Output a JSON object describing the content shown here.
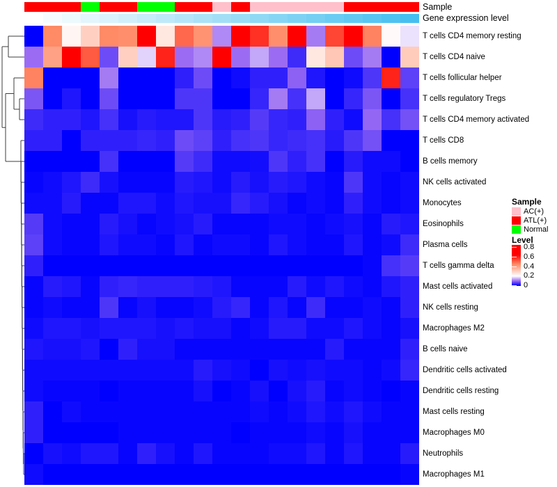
{
  "annotations": {
    "sample_label": "Sample",
    "expression_label": "Gene expression level"
  },
  "legend": {
    "sample": {
      "title": "Sample",
      "items": [
        {
          "label": "AC(+)",
          "color": "#FFC0CB"
        },
        {
          "label": "ATL(+)",
          "color": "#FF0000"
        },
        {
          "label": "Normal",
          "color": "#00FF00"
        }
      ]
    },
    "level": {
      "title": "Level",
      "ticks": [
        0.8,
        0.6,
        0.4,
        0.2,
        0
      ],
      "max": 0.85,
      "colormap": [
        {
          "v": 0.0,
          "color": "#0000FF"
        },
        {
          "v": 0.1,
          "color": "#9B6CF3"
        },
        {
          "v": 0.2,
          "color": "#FFFFFF"
        },
        {
          "v": 0.45,
          "color": "#FF8A66"
        },
        {
          "v": 0.65,
          "color": "#FF0000"
        },
        {
          "v": 0.85,
          "color": "#FF0000"
        }
      ]
    }
  },
  "expression_ramp": {
    "low": "#FFFFFF",
    "high": "#45BFEF"
  },
  "chart_data": {
    "type": "heatmap",
    "rows": [
      "T cells CD4 memory resting",
      "T cells CD4 naive",
      "T cells follicular helper",
      "T cells regulatory  Tregs",
      "T cells CD4 memory activated",
      "T cells CD8",
      "B cells memory",
      "NK cells activated",
      "Monocytes",
      "Eosinophils",
      "Plasma cells",
      "T cells gamma delta",
      "Mast cells activated",
      "NK cells resting",
      "Macrophages M2",
      "B cells naive",
      "Dendritic cells activated",
      "Dendritic cells resting",
      "Mast cells resting",
      "Macrophages M0",
      "Neutrophils",
      "Macrophages M1"
    ],
    "columns_sample_group": [
      "ATL(+)",
      "ATL(+)",
      "ATL(+)",
      "Normal",
      "ATL(+)",
      "ATL(+)",
      "Normal",
      "Normal",
      "ATL(+)",
      "ATL(+)",
      "AC(+)",
      "ATL(+)",
      "AC(+)",
      "AC(+)",
      "AC(+)",
      "AC(+)",
      "AC(+)",
      "ATL(+)",
      "ATL(+)",
      "ATL(+)",
      "ATL(+)"
    ],
    "columns_expression_level": [
      0,
      0.05,
      0.1,
      0.15,
      0.2,
      0.25,
      0.3,
      0.35,
      0.4,
      0.45,
      0.5,
      0.55,
      0.6,
      0.65,
      0.7,
      0.75,
      0.8,
      0.85,
      0.9,
      0.95,
      1
    ],
    "value_range": [
      0,
      0.85
    ],
    "legend_position": "right",
    "values": [
      [
        0,
        0.45,
        0.22,
        0.3,
        0.45,
        0.44,
        0.7,
        0.25,
        0.5,
        0.43,
        0.12,
        0.7,
        0.58,
        0.44,
        0.7,
        0.11,
        0.55,
        0.68,
        0.46,
        0.21,
        0.18
      ],
      [
        0.1,
        0.4,
        0.65,
        0.52,
        0.07,
        0.3,
        0.17,
        0.6,
        0.1,
        0.12,
        0.65,
        0.1,
        0.14,
        0.1,
        0.04,
        0.25,
        0.32,
        0.07,
        0.11,
        0,
        0.31
      ],
      [
        0.46,
        0,
        0,
        0,
        0.11,
        0,
        0,
        0,
        0.03,
        0.07,
        0,
        0.01,
        0.03,
        0.03,
        0.09,
        0.02,
        0,
        0.01,
        0.05,
        0.6,
        0.06
      ],
      [
        0.08,
        0,
        0.02,
        0,
        0.07,
        0,
        0,
        0,
        0.05,
        0.05,
        0,
        0,
        0.035,
        0.11,
        0.045,
        0.14,
        0,
        0.035,
        0.08,
        0,
        0.045
      ],
      [
        0.04,
        0.03,
        0.03,
        0.02,
        0.045,
        0.015,
        0.025,
        0.02,
        0.02,
        0.05,
        0.025,
        0.03,
        0.055,
        0.035,
        0.03,
        0.09,
        0.03,
        0.01,
        0.095,
        0.045,
        0.075
      ],
      [
        0.03,
        0.03,
        0,
        0.03,
        0.03,
        0.03,
        0.035,
        0.03,
        0.07,
        0.06,
        0.03,
        0.045,
        0.05,
        0.035,
        0.04,
        0.045,
        0.025,
        0.05,
        0.075,
        0,
        0
      ],
      [
        0,
        0,
        0,
        0,
        0.045,
        0,
        0,
        0,
        0.055,
        0.04,
        0.01,
        0.01,
        0.012,
        0.05,
        0.03,
        0.045,
        0,
        0.025,
        0.01,
        0.01,
        0
      ],
      [
        0.005,
        0.01,
        0.02,
        0.04,
        0.015,
        0.005,
        0.005,
        0.005,
        0.025,
        0.02,
        0.01,
        0.025,
        0.015,
        0.025,
        0.02,
        0.01,
        0.005,
        0.05,
        0.01,
        0.005,
        0.01
      ],
      [
        0.01,
        0.01,
        0.025,
        0.005,
        0.005,
        0.02,
        0.02,
        0.01,
        0.02,
        0.015,
        0.015,
        0.035,
        0.025,
        0.015,
        0.005,
        0.01,
        0.005,
        0.03,
        0.01,
        0.005,
        0.01
      ],
      [
        0.055,
        0.01,
        0.005,
        0.005,
        0.025,
        0.015,
        0.005,
        0.01,
        0.015,
        0.025,
        0.005,
        0.005,
        0.005,
        0.01,
        0.01,
        0.005,
        0.01,
        0.015,
        0.005,
        0.025,
        0.02
      ],
      [
        0.06,
        0.01,
        0.005,
        0.005,
        0.02,
        0.01,
        0.01,
        0.005,
        0.02,
        0.005,
        0.01,
        0.01,
        0.005,
        0.02,
        0.01,
        0.005,
        0.005,
        0.02,
        0.005,
        0.01,
        0.04
      ],
      [
        0.03,
        0,
        0,
        0,
        0,
        0,
        0,
        0,
        0,
        0,
        0,
        0,
        0,
        0,
        0,
        0,
        0,
        0,
        0.005,
        0.045,
        0.055
      ],
      [
        0.005,
        0.025,
        0.02,
        0.005,
        0.03,
        0.035,
        0.03,
        0.03,
        0.03,
        0.025,
        0.02,
        0.005,
        0.005,
        0.005,
        0.025,
        0.01,
        0.02,
        0.01,
        0.005,
        0.02,
        0.03
      ],
      [
        0.005,
        0.01,
        0.005,
        0.005,
        0.05,
        0.005,
        0.015,
        0.005,
        0.005,
        0.01,
        0.025,
        0.035,
        0.005,
        0.02,
        0.005,
        0.04,
        0.005,
        0.005,
        0.01,
        0.005,
        0.03
      ],
      [
        0.01,
        0.02,
        0.02,
        0.015,
        0.02,
        0.02,
        0.02,
        0.015,
        0.02,
        0.015,
        0.015,
        0.005,
        0.01,
        0.025,
        0.025,
        0.01,
        0.01,
        0.02,
        0.01,
        0.005,
        0.015
      ],
      [
        0.02,
        0.015,
        0.015,
        0.02,
        0,
        0.03,
        0.015,
        0.015,
        0.005,
        0.005,
        0.005,
        0.005,
        0.005,
        0.005,
        0.005,
        0.005,
        0.025,
        0.005,
        0.005,
        0.005,
        0.03
      ],
      [
        0.01,
        0.01,
        0.01,
        0.01,
        0.01,
        0.01,
        0.01,
        0.01,
        0.01,
        0.025,
        0.015,
        0.01,
        0,
        0.015,
        0.01,
        0.015,
        0.01,
        0.01,
        0.005,
        0.01,
        0.035
      ],
      [
        0.01,
        0.005,
        0.005,
        0.005,
        0,
        0.005,
        0.005,
        0.005,
        0.005,
        0.015,
        0,
        0.005,
        0.015,
        0,
        0.015,
        0.025,
        0.005,
        0.01,
        0.005,
        0,
        0.005
      ],
      [
        0.03,
        0,
        0.01,
        0.005,
        0.005,
        0.005,
        0.005,
        0.005,
        0.005,
        0.005,
        0.005,
        0.005,
        0.01,
        0.005,
        0.01,
        0.02,
        0.01,
        0.02,
        0.01,
        0.005,
        0.005
      ],
      [
        0.03,
        0,
        0,
        0,
        0,
        0.005,
        0.005,
        0.005,
        0.005,
        0.005,
        0.005,
        0,
        0.005,
        0.005,
        0.005,
        0.01,
        0.005,
        0.015,
        0.005,
        0.005,
        0.005
      ],
      [
        0,
        0.015,
        0.01,
        0.02,
        0.02,
        0.005,
        0.03,
        0.015,
        0.005,
        0.02,
        0.005,
        0.005,
        0.005,
        0.01,
        0.01,
        0.02,
        0.005,
        0.02,
        0.005,
        0.005,
        0.025
      ],
      [
        0.01,
        0,
        0,
        0,
        0,
        0,
        0,
        0,
        0,
        0,
        0,
        0,
        0,
        0,
        0,
        0,
        0,
        0,
        0,
        0,
        0.005
      ]
    ]
  }
}
